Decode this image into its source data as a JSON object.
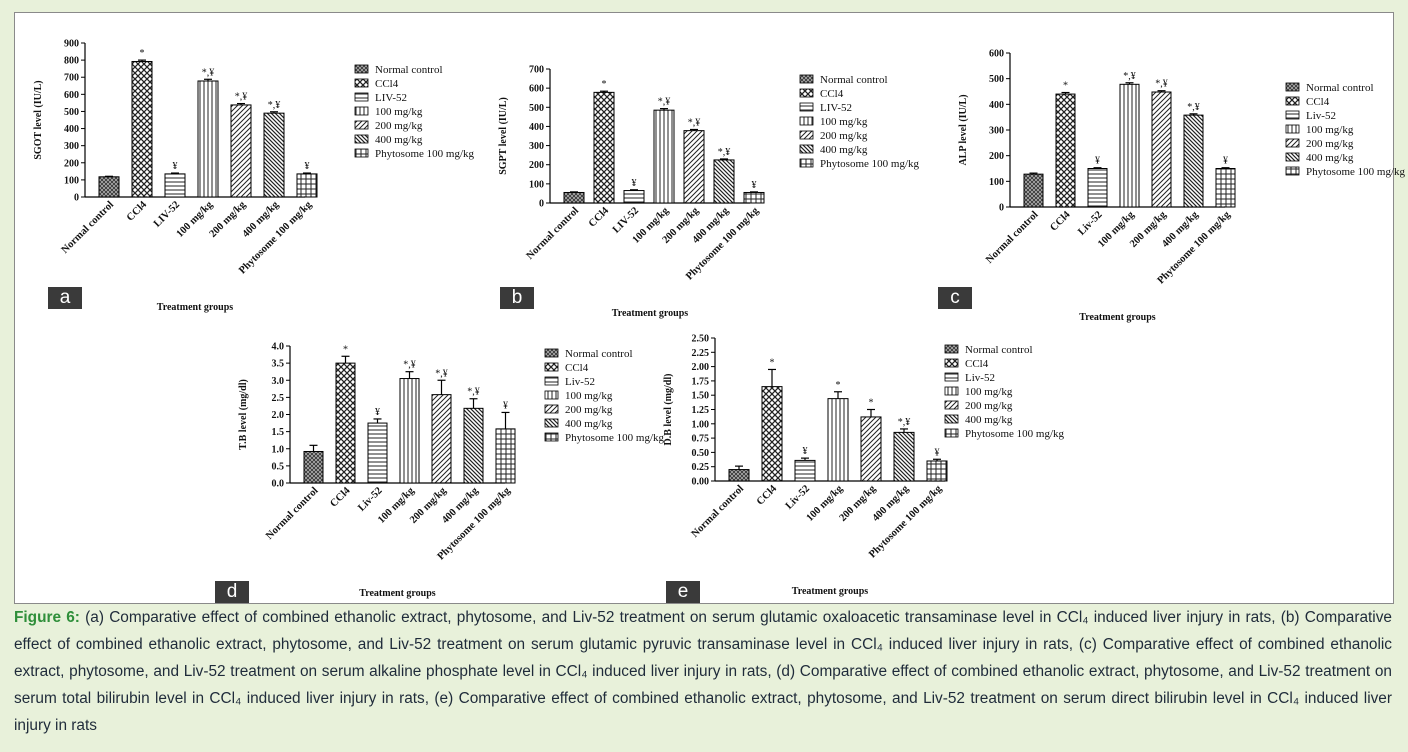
{
  "figure": {
    "panel_letters": [
      "a",
      "b",
      "c",
      "d",
      "e"
    ]
  },
  "caption": {
    "label": "Figure 6:",
    "text": " (a) Comparative effect of combined ethanolic extract, phytosome, and Liv-52 treatment on serum glutamic oxaloacetic transaminase level in CCl₄ induced liver injury in rats, (b) Comparative effect of combined ethanolic extract, phytosome, and Liv-52 treatment on serum glutamic pyruvic transaminase level in CCl₄ induced liver injury in rats, (c) Comparative effect of combined ethanolic extract, phytosome, and Liv-52 treatment on serum alkaline phosphate level in CCl₄ induced liver injury in rats, (d) Comparative effect of combined ethanolic extract, phytosome, and Liv-52 treatment on serum total bilirubin level in CCl₄ induced liver injury in rats, (e) Comparative effect of combined ethanolic extract, phytosome, and Liv-52 treatment on serum direct bilirubin level in CCl₄ induced liver injury in rats"
  },
  "chart_data": [
    {
      "type": "bar",
      "panel": "a",
      "title": "",
      "xlabel": "Treatment groups",
      "ylabel": "SGOT level (IU/L)",
      "ylim": [
        0,
        900
      ],
      "yticks": [
        "0",
        "100",
        "200",
        "300",
        "400",
        "500",
        "600",
        "700",
        "800",
        "900"
      ],
      "categories": [
        "Normal control",
        "CCl4",
        "LIV-52",
        "100 mg/kg",
        "200 mg/kg",
        "400 mg/kg",
        "Phytosome 100 mg/kg"
      ],
      "values": [
        118,
        792,
        135,
        678,
        538,
        490,
        135
      ],
      "errors": [
        3,
        8,
        5,
        10,
        8,
        8,
        5
      ],
      "significance": [
        "",
        "*",
        "¥",
        "*,¥",
        "*,¥",
        "*,¥",
        "¥"
      ],
      "legend": [
        "Normal control",
        "CCl4",
        "LIV-52",
        "100 mg/kg",
        "200 mg/kg",
        "400 mg/kg",
        "Phytosome 100 mg/kg"
      ],
      "legend_position": "right"
    },
    {
      "type": "bar",
      "panel": "b",
      "title": "",
      "xlabel": "Treatment groups",
      "ylabel": "SGPT level (IU/L)",
      "ylim": [
        0,
        700
      ],
      "yticks": [
        "0",
        "100",
        "200",
        "300",
        "400",
        "500",
        "600",
        "700"
      ],
      "categories": [
        "Normal control",
        "CCl4",
        "LIV-52",
        "100 mg/kg",
        "200 mg/kg",
        "400 mg/kg",
        "Phytosome 100 mg/kg"
      ],
      "values": [
        55,
        578,
        65,
        485,
        378,
        225,
        55
      ],
      "errors": [
        3,
        6,
        4,
        8,
        6,
        5,
        3
      ],
      "significance": [
        "",
        "*",
        "¥",
        "*,¥",
        "*,¥",
        "*,¥",
        "¥"
      ],
      "legend": [
        "Normal control",
        "CCl4",
        "LIV-52",
        "100 mg/kg",
        "200 mg/kg",
        "400 mg/kg",
        "Phytosome 100 mg/kg"
      ],
      "legend_position": "right"
    },
    {
      "type": "bar",
      "panel": "c",
      "title": "",
      "xlabel": "Treatment groups",
      "ylabel": "ALP level (IU/L)",
      "ylim": [
        0,
        600
      ],
      "yticks": [
        "0",
        "100",
        "200",
        "300",
        "400",
        "500",
        "600"
      ],
      "categories": [
        "Normal control",
        "CCl4",
        "Liv-52",
        "100 mg/kg",
        "200 mg/kg",
        "400 mg/kg",
        "Phytosome 100 mg/kg"
      ],
      "values": [
        128,
        440,
        150,
        478,
        448,
        358,
        150
      ],
      "errors": [
        4,
        6,
        3,
        6,
        5,
        5,
        3
      ],
      "significance": [
        "",
        "*",
        "¥",
        "*,¥",
        "*,¥",
        "*,¥",
        "¥"
      ],
      "legend": [
        "Normal control",
        "CCl4",
        "Liv-52",
        "100 mg/kg",
        "200 mg/kg",
        "400 mg/kg",
        "Phytosome 100 mg/kg"
      ],
      "legend_position": "right"
    },
    {
      "type": "bar",
      "panel": "d",
      "title": "",
      "xlabel": "Treatment groups",
      "ylabel": "T.B level (mg/dl)",
      "ylim": [
        0,
        4.0
      ],
      "yticks": [
        "0.0",
        "0.5",
        "1.0",
        "1.5",
        "2.0",
        "2.5",
        "3.0",
        "3.5",
        "4.0"
      ],
      "categories": [
        "Normal control",
        "CCl4",
        "Liv-52",
        "100 mg/kg",
        "200 mg/kg",
        "400 mg/kg",
        "Phytosome 100 mg/kg"
      ],
      "values": [
        0.92,
        3.5,
        1.75,
        3.05,
        2.58,
        2.18,
        1.58
      ],
      "errors": [
        0.18,
        0.2,
        0.12,
        0.2,
        0.42,
        0.28,
        0.48
      ],
      "significance": [
        "",
        "*",
        "¥",
        "*,¥",
        "*,¥",
        "*,¥",
        "¥"
      ],
      "legend": [
        "Normal control",
        "CCl4",
        "Liv-52",
        "100 mg/kg",
        "200 mg/kg",
        "400 mg/kg",
        "Phytosome 100 mg/kg"
      ],
      "legend_position": "right"
    },
    {
      "type": "bar",
      "panel": "e",
      "title": "",
      "xlabel": "Treatment groups",
      "ylabel": "D.B level (mg/dl)",
      "ylim": [
        0,
        2.5
      ],
      "yticks": [
        "0.00",
        "0.25",
        "0.50",
        "0.75",
        "1.00",
        "1.25",
        "1.50",
        "1.75",
        "2.00",
        "2.25",
        "2.50"
      ],
      "categories": [
        "Normal control",
        "CCl4",
        "Liv-52",
        "100 mg/kg",
        "200 mg/kg",
        "400 mg/kg",
        "Phytosome 100 mg/kg"
      ],
      "values": [
        0.2,
        1.65,
        0.36,
        1.44,
        1.12,
        0.85,
        0.35
      ],
      "errors": [
        0.06,
        0.3,
        0.04,
        0.12,
        0.13,
        0.06,
        0.03
      ],
      "significance": [
        "",
        "*",
        "¥",
        "*",
        "*",
        "*,¥",
        "¥"
      ],
      "legend": [
        "Normal control",
        "CCl4",
        "Liv-52",
        "100 mg/kg",
        "200 mg/kg",
        "400 mg/kg",
        "Phytosome 100 mg/kg"
      ],
      "legend_position": "right"
    }
  ]
}
